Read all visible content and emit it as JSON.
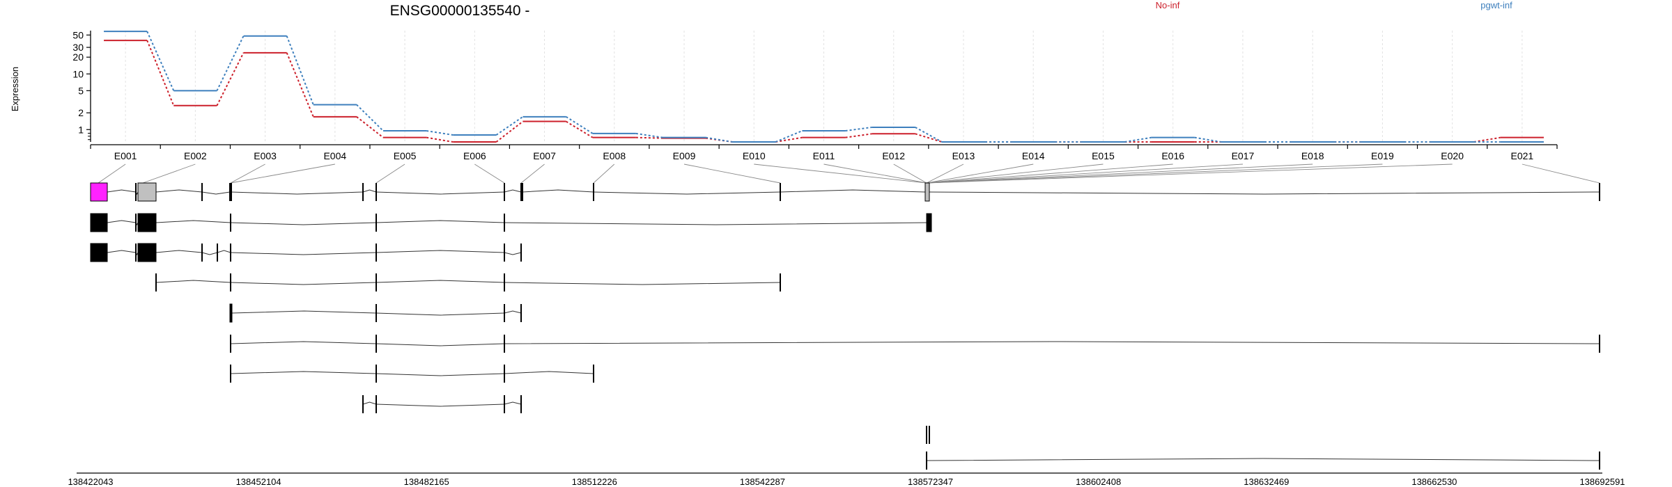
{
  "figure": {
    "title": "ENSG00000135540 -",
    "ylabel": "Expression"
  },
  "colors": {
    "no_inf": "#cc1f2a",
    "pgwt_inf": "#3d7fbd",
    "highlight_exon": "#ff22ff",
    "gray_exon": "#c0c0c0",
    "exon": "#000000"
  },
  "chart_data": {
    "type": "line",
    "title": "ENSG00000135540 -",
    "ylabel": "Expression",
    "xlabel": "",
    "y_scale": "log",
    "yticks": [
      1,
      2,
      5,
      10,
      20,
      30,
      50
    ],
    "grid": "vertical",
    "legend": "top",
    "categories": [
      "E001",
      "E002",
      "E003",
      "E004",
      "E005",
      "E006",
      "E007",
      "E008",
      "E009",
      "E010",
      "E011",
      "E012",
      "E013",
      "E014",
      "E015",
      "E016",
      "E017",
      "E018",
      "E019",
      "E020",
      "E021"
    ],
    "series": [
      {
        "name": "No-inf",
        "values": [
          40,
          2.7,
          24,
          1.7,
          0.72,
          0.6,
          1.4,
          0.72,
          0.7,
          0.6,
          0.72,
          0.84,
          0.6,
          0.6,
          0.6,
          0.6,
          0.6,
          0.6,
          0.6,
          0.6,
          0.72
        ]
      },
      {
        "name": "pgwt-inf",
        "values": [
          58,
          5,
          48,
          2.8,
          0.95,
          0.8,
          1.7,
          0.85,
          0.72,
          0.6,
          0.95,
          1.1,
          0.6,
          0.6,
          0.6,
          0.72,
          0.6,
          0.6,
          0.6,
          0.6,
          0.6
        ]
      }
    ],
    "genomic_axis": {
      "ticks": [
        "138422043",
        "138452104",
        "138482165",
        "138512226",
        "138542287",
        "138572347",
        "138602408",
        "138632469",
        "138662530",
        "138692591"
      ]
    }
  }
}
